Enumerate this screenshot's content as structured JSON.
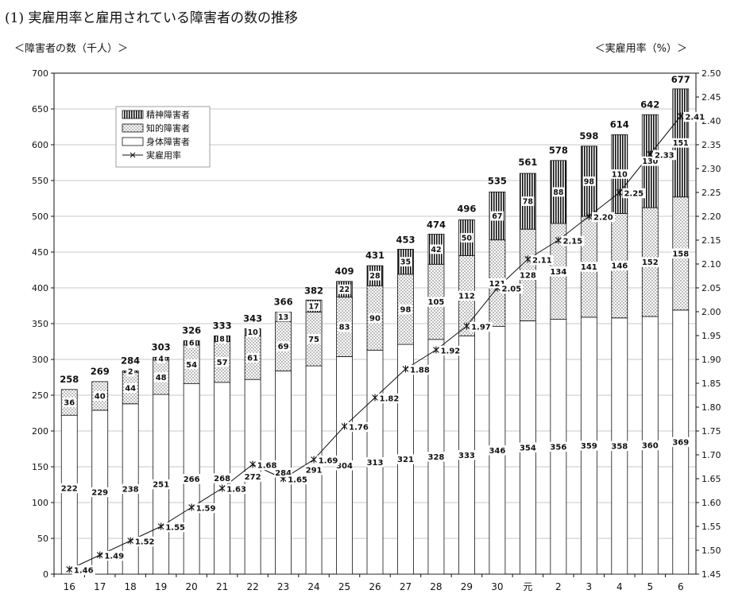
{
  "page": {
    "title": "(1) 実雇用率と雇用されている障害者の数の推移",
    "left_axis_label": "＜障害者の数（千人）＞",
    "right_axis_label": "＜実雇用率（%）＞"
  },
  "chart_data": {
    "type": "bar",
    "stacked": true,
    "categories": [
      "16",
      "17",
      "18",
      "19",
      "20",
      "21",
      "22",
      "23",
      "24",
      "25",
      "26",
      "27",
      "28",
      "29",
      "30",
      "元",
      "2",
      "3",
      "4",
      "5",
      "6"
    ],
    "series": [
      {
        "name": "身体障害者",
        "pattern": "plain",
        "values": [
          222,
          229,
          238,
          251,
          266,
          268,
          272,
          284,
          291,
          304,
          313,
          321,
          328,
          333,
          346,
          354,
          356,
          359,
          358,
          360,
          369
        ]
      },
      {
        "name": "知的障害者",
        "pattern": "dotted",
        "values": [
          36,
          40,
          44,
          48,
          54,
          57,
          61,
          69,
          75,
          83,
          90,
          98,
          105,
          112,
          121,
          128,
          134,
          141,
          146,
          152,
          158
        ]
      },
      {
        "name": "精神障害者",
        "pattern": "vertical-stripes",
        "values": [
          0,
          0,
          2,
          4,
          6,
          8,
          10,
          13,
          17,
          22,
          28,
          35,
          42,
          50,
          67,
          78,
          88,
          98,
          110,
          130,
          151
        ]
      }
    ],
    "totals": [
      258,
      269,
      284,
      303,
      326,
      333,
      343,
      366,
      382,
      409,
      431,
      453,
      474,
      496,
      535,
      561,
      578,
      598,
      614,
      642,
      677
    ],
    "line": {
      "name": "実雇用率",
      "axis": "right",
      "values": [
        1.46,
        1.49,
        1.52,
        1.55,
        1.59,
        1.63,
        1.68,
        1.65,
        1.69,
        1.76,
        1.82,
        1.88,
        1.92,
        1.97,
        2.05,
        2.11,
        2.15,
        2.2,
        2.25,
        2.33,
        2.41
      ]
    },
    "left_axis": {
      "min": 0,
      "max": 700,
      "step": 50
    },
    "right_axis": {
      "min": 1.45,
      "max": 2.5,
      "step": 0.05
    },
    "legend_position": "top-left",
    "grid": "horizontal"
  }
}
